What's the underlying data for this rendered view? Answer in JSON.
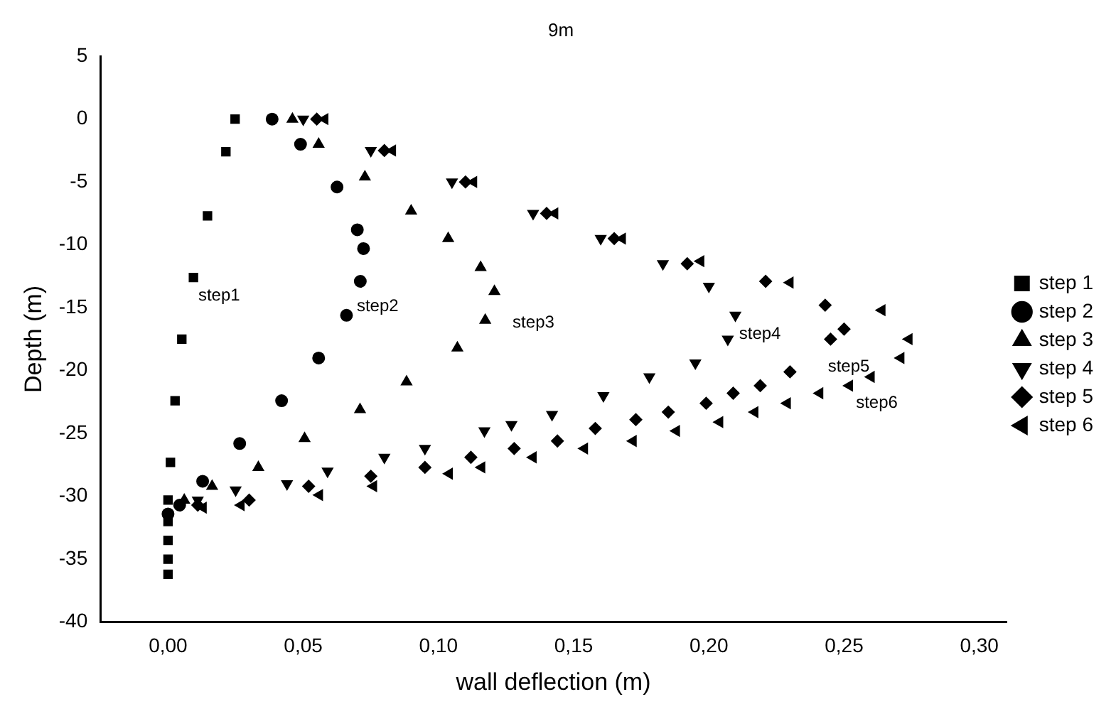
{
  "chart_data": {
    "type": "scatter",
    "title": "9m",
    "xlabel": "wall deflection (m)",
    "ylabel": "Depth (m)",
    "xlim": [
      -0.025,
      0.31
    ],
    "xticks": [
      {
        "value": 0,
        "label": "0,00"
      },
      {
        "value": 0.05,
        "label": "0,05"
      },
      {
        "value": 0.1,
        "label": "0,10"
      },
      {
        "value": 0.15,
        "label": "0,15"
      },
      {
        "value": 0.2,
        "label": "0,20"
      },
      {
        "value": 0.25,
        "label": "0,25"
      },
      {
        "value": 0.3,
        "label": "0,30"
      }
    ],
    "ylim": [
      -40,
      5
    ],
    "yticks": [
      5,
      0,
      -5,
      -10,
      -15,
      -20,
      -25,
      -30,
      -35,
      -40
    ],
    "grid": false,
    "legend": "right",
    "series": [
      {
        "name": "step 1",
        "color": "#000000",
        "marker": "square",
        "x": [
          0.0248,
          0.0214,
          0.0146,
          0.0094,
          0.0051,
          0.0026,
          0.0009,
          0,
          0,
          0,
          0,
          0
        ],
        "values": [
          0,
          -2.6,
          -7.7,
          -12.6,
          -17.5,
          -22.4,
          -27.3,
          -30.3,
          -32,
          -33.5,
          -35,
          -36.2
        ]
      },
      {
        "name": "step 2",
        "color": "#000000",
        "marker": "circle",
        "x": [
          0.0385,
          0.049,
          0.0625,
          0.07,
          0.0723,
          0.0711,
          0.066,
          0.0557,
          0.042,
          0.0265,
          0.0128,
          0.0043,
          0
        ],
        "values": [
          0,
          -2,
          -5.4,
          -8.8,
          -10.3,
          -12.9,
          -15.6,
          -19,
          -22.4,
          -25.8,
          -28.8,
          -30.7,
          -31.4
        ]
      },
      {
        "name": "step 3",
        "color": "#000000",
        "marker": "triangle",
        "x": [
          0.046,
          0.0557,
          0.0728,
          0.0899,
          0.1036,
          0.1156,
          0.1207,
          0.1173,
          0.107,
          0.0882,
          0.071,
          0.0505,
          0.0334,
          0.0163,
          0.006
        ],
        "values": [
          0,
          -2,
          -4.6,
          -7.3,
          -9.5,
          -11.8,
          -13.7,
          -16,
          -18.2,
          -20.9,
          -23.1,
          -25.4,
          -27.7,
          -29.2,
          -30.3
        ]
      },
      {
        "name": "step 4",
        "color": "#000000",
        "marker": "triangle-down",
        "x": [
          0.05,
          0.075,
          0.105,
          0.135,
          0.16,
          0.183,
          0.2,
          0.2098,
          0.207,
          0.195,
          0.178,
          0.161,
          0.142,
          0.127,
          0.117,
          0.095,
          0.08,
          0.059,
          0.044,
          0.025,
          0.011
        ],
        "values": [
          0,
          -2.5,
          -5,
          -7.5,
          -9.5,
          -11.5,
          -13.3,
          -15.6,
          -17.5,
          -19.4,
          -20.5,
          -22,
          -23.5,
          -24.3,
          -24.8,
          -26.2,
          -26.9,
          -28,
          -29,
          -29.5,
          -30.3
        ]
      },
      {
        "name": "step 5",
        "color": "#000000",
        "marker": "diamond",
        "x": [
          0.055,
          0.08,
          0.11,
          0.14,
          0.165,
          0.192,
          0.221,
          0.243,
          0.25,
          0.245,
          0.23,
          0.219,
          0.209,
          0.199,
          0.185,
          0.173,
          0.158,
          0.144,
          0.128,
          0.112,
          0.095,
          0.075,
          0.052,
          0.03,
          0.011
        ],
        "values": [
          0,
          -2.5,
          -5,
          -7.5,
          -9.5,
          -11.5,
          -12.9,
          -14.8,
          -16.7,
          -17.5,
          -20.1,
          -21.2,
          -21.8,
          -22.6,
          -23.3,
          -23.9,
          -24.6,
          -25.6,
          -26.2,
          -26.9,
          -27.7,
          -28.4,
          -29.2,
          -30.3,
          -30.7
        ]
      },
      {
        "name": "step 6",
        "color": "#000000",
        "marker": "triangle-left",
        "x": [
          0.058,
          0.083,
          0.113,
          0.143,
          0.168,
          0.197,
          0.23,
          0.264,
          0.274,
          0.271,
          0.26,
          0.252,
          0.241,
          0.229,
          0.217,
          0.204,
          0.188,
          0.172,
          0.154,
          0.135,
          0.116,
          0.104,
          0.076,
          0.056,
          0.027,
          0.013
        ],
        "values": [
          0,
          -2.5,
          -5,
          -7.5,
          -9.5,
          -11.3,
          -13,
          -15.2,
          -17.5,
          -19,
          -20.5,
          -21.2,
          -21.8,
          -22.6,
          -23.3,
          -24.1,
          -24.8,
          -25.6,
          -26.2,
          -26.9,
          -27.7,
          -28.2,
          -29.2,
          -29.9,
          -30.7,
          -30.9
        ]
      }
    ],
    "annotations": [
      "step1",
      "step2",
      "step3",
      "step4",
      "step5",
      "step6"
    ]
  }
}
